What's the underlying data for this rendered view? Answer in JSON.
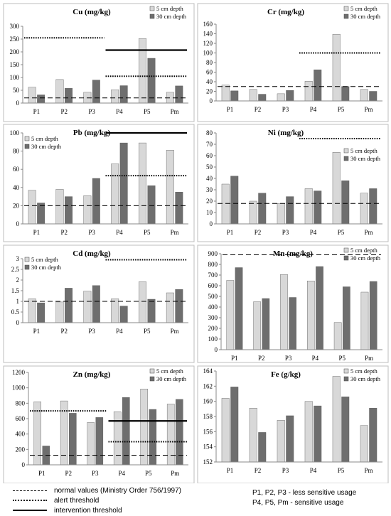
{
  "colors": {
    "bar_5cm": "#d8d8d8",
    "bar_30cm": "#6e6e6e",
    "frame": "#bdbdbd",
    "axis": "#8a8a8a"
  },
  "legend": {
    "normal": "normal values (Ministry Order 756/1997)",
    "alert": "alert threshold",
    "intervention": "intervention threshold"
  },
  "notes": {
    "less_sensitive": "P1, P2, P3 - less sensitive usage",
    "sensitive": "P4, P5, Pm - sensitive usage"
  },
  "chart_data": [
    {
      "type": "bar",
      "title": "Cu (mg/kg)",
      "categories": [
        "P1",
        "P2",
        "P3",
        "P4",
        "P5",
        "Pm"
      ],
      "series": [
        {
          "name": "5 cm depth",
          "values": [
            62,
            92,
            42,
            52,
            252,
            42
          ]
        },
        {
          "name": "30 cm depth",
          "values": [
            32,
            58,
            90,
            68,
            175,
            67
          ]
        }
      ],
      "ylim": [
        0,
        300
      ],
      "yticks": [
        0,
        50,
        100,
        150,
        200,
        250,
        300
      ],
      "legend_position": "top-right",
      "thresholds": [
        {
          "kind": "normal",
          "value": 20,
          "from": 0,
          "to": 6
        },
        {
          "kind": "alert",
          "value": 255,
          "from": 0,
          "to": 3
        },
        {
          "kind": "alert",
          "value": 105,
          "from": 3,
          "to": 6
        },
        {
          "kind": "intervention",
          "value": 207,
          "from": 3,
          "to": 6
        }
      ]
    },
    {
      "type": "bar",
      "title": "Cr (mg/kg)",
      "categories": [
        "P1",
        "P2",
        "P3",
        "P4",
        "P5",
        "Pm"
      ],
      "series": [
        {
          "name": "5 cm depth",
          "values": [
            33,
            24,
            15,
            41,
            139,
            24
          ]
        },
        {
          "name": "30 cm depth",
          "values": [
            21,
            14,
            22,
            65,
            30,
            20
          ]
        }
      ],
      "ylim": [
        0,
        160
      ],
      "yticks": [
        0,
        20,
        40,
        60,
        80,
        100,
        120,
        140,
        160
      ],
      "legend_position": "top-right",
      "thresholds": [
        {
          "kind": "normal",
          "value": 30,
          "from": 0,
          "to": 6
        },
        {
          "kind": "alert",
          "value": 100,
          "from": 3,
          "to": 6
        }
      ]
    },
    {
      "type": "bar",
      "title": "Pb (mg/kg)",
      "categories": [
        "P1",
        "P2",
        "P3",
        "P4",
        "P5",
        "Pm"
      ],
      "series": [
        {
          "name": "5 cm depth",
          "values": [
            37,
            38,
            31,
            66,
            89,
            81
          ]
        },
        {
          "name": "30 cm depth",
          "values": [
            23,
            30,
            50,
            89,
            42,
            35
          ]
        }
      ],
      "ylim": [
        0,
        100
      ],
      "yticks": [
        0,
        20,
        40,
        60,
        80,
        100
      ],
      "legend_position": "top-left",
      "thresholds": [
        {
          "kind": "normal",
          "value": 20,
          "from": 0,
          "to": 6
        },
        {
          "kind": "alert",
          "value": 53,
          "from": 3,
          "to": 6
        },
        {
          "kind": "intervention",
          "value": 100,
          "from": 3,
          "to": 6
        }
      ]
    },
    {
      "type": "bar",
      "title": "Ni (mg/kg)",
      "categories": [
        "P1",
        "P2",
        "P3",
        "P4",
        "P5",
        "Pm"
      ],
      "series": [
        {
          "name": "5 cm depth",
          "values": [
            35,
            20,
            18,
            31,
            63,
            27
          ]
        },
        {
          "name": "30 cm depth",
          "values": [
            42,
            27,
            24,
            29,
            38,
            31
          ]
        }
      ],
      "ylim": [
        0,
        80
      ],
      "yticks": [
        0,
        10,
        20,
        30,
        40,
        50,
        60,
        70,
        80
      ],
      "legend_position": "right",
      "thresholds": [
        {
          "kind": "normal",
          "value": 18,
          "from": 0,
          "to": 6
        },
        {
          "kind": "alert",
          "value": 75,
          "from": 3,
          "to": 6
        }
      ]
    },
    {
      "type": "bar",
      "title": "Cd (mg/kg)",
      "categories": [
        "P1",
        "P2",
        "P3",
        "P4",
        "P5",
        "Pm"
      ],
      "series": [
        {
          "name": "5 cm depth",
          "values": [
            1.12,
            0.97,
            1.48,
            1.12,
            1.92,
            1.4
          ]
        },
        {
          "name": "30 cm depth",
          "values": [
            0.93,
            1.62,
            1.74,
            0.78,
            1.1,
            1.56
          ]
        }
      ],
      "ylim": [
        0,
        3
      ],
      "yticks": [
        0,
        0.5,
        1,
        1.5,
        2,
        2.5,
        3
      ],
      "legend_position": "top-left",
      "thresholds": [
        {
          "kind": "normal",
          "value": 1,
          "from": 0,
          "to": 6
        },
        {
          "kind": "alert",
          "value": 2.95,
          "from": 3,
          "to": 6
        }
      ]
    },
    {
      "type": "bar",
      "title": "Mn (mg/kg)",
      "categories": [
        "P1",
        "P2",
        "P3",
        "P4",
        "P5",
        "Pm"
      ],
      "series": [
        {
          "name": "5 cm depth",
          "values": [
            650,
            450,
            705,
            645,
            255,
            540
          ]
        },
        {
          "name": "30 cm depth",
          "values": [
            770,
            480,
            490,
            780,
            590,
            640
          ]
        }
      ],
      "ylim": [
        0,
        900
      ],
      "yticks": [
        0,
        100,
        200,
        300,
        400,
        500,
        600,
        700,
        800,
        900
      ],
      "legend_position": "top-right",
      "thresholds": [
        {
          "kind": "normal",
          "value": 890,
          "from": 0,
          "to": 6
        }
      ]
    },
    {
      "type": "bar",
      "title": "Zn (mg/kg)",
      "categories": [
        "P1",
        "P2",
        "P3",
        "P4",
        "P5",
        "Pm"
      ],
      "series": [
        {
          "name": "5 cm depth",
          "values": [
            820,
            830,
            550,
            690,
            985,
            790
          ]
        },
        {
          "name": "30 cm depth",
          "values": [
            245,
            670,
            615,
            875,
            720,
            850
          ]
        }
      ],
      "ylim": [
        0,
        1200
      ],
      "yticks": [
        0,
        200,
        400,
        600,
        800,
        1000,
        1200
      ],
      "legend_position": "top-right",
      "thresholds": [
        {
          "kind": "normal",
          "value": 125,
          "from": 0,
          "to": 6
        },
        {
          "kind": "alert",
          "value": 700,
          "from": 0,
          "to": 3
        },
        {
          "kind": "alert",
          "value": 300,
          "from": 3,
          "to": 6
        },
        {
          "kind": "intervention",
          "value": 570,
          "from": 3,
          "to": 6
        }
      ]
    },
    {
      "type": "bar",
      "title": "Fe (g/kg)",
      "categories": [
        "P1",
        "P2",
        "P3",
        "P4",
        "P5",
        "Pm"
      ],
      "series": [
        {
          "name": "5 cm depth",
          "values": [
            160.4,
            159.1,
            157.5,
            160.0,
            163.3,
            156.8
          ]
        },
        {
          "name": "30 cm depth",
          "values": [
            161.9,
            155.9,
            158.1,
            159.4,
            160.6,
            159.1
          ]
        }
      ],
      "ylim": [
        152,
        164
      ],
      "yticks": [
        152,
        154,
        156,
        158,
        160,
        162,
        164
      ],
      "legend_position": "top-right",
      "thresholds": []
    }
  ]
}
